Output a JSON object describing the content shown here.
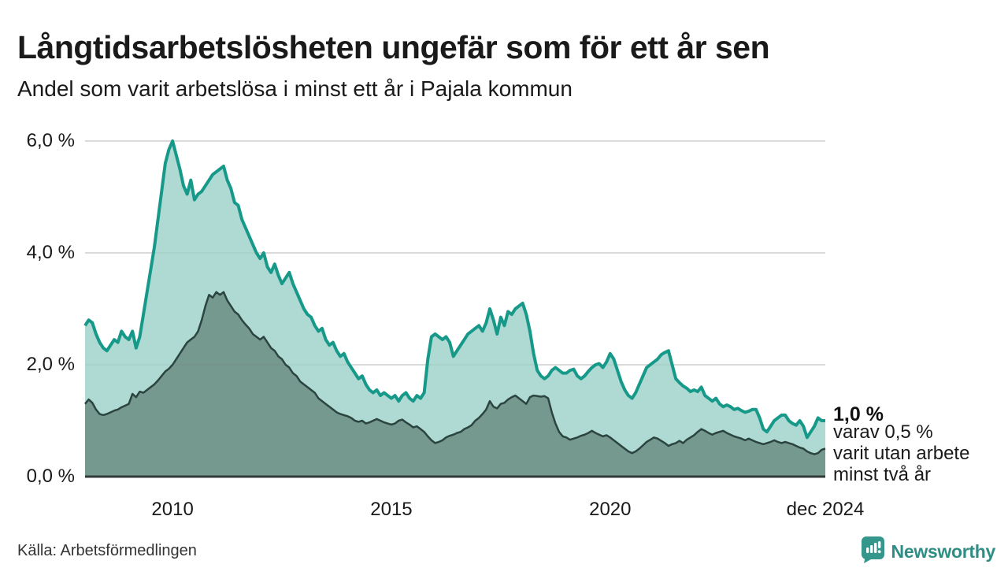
{
  "header": {
    "title": "Långtidsarbetslösheten ungefär som för ett år sen",
    "subtitle": "Andel som varit arbetslösa i minst ett år i Pajala kommun"
  },
  "footer": {
    "source": "Källa: Arbetsförmedlingen",
    "brand": "Newsworthy"
  },
  "colors": {
    "series1_line": "#17998a",
    "series1_fill": "#aedad3",
    "series2_line": "#2b443f",
    "series2_fill": "#75988f",
    "gridline": "#d9d9d9",
    "baseline": "#333b38",
    "brand_teal": "#35968b"
  },
  "chart_data": {
    "type": "area",
    "title": "Långtidsarbetslösheten ungefär som för ett år sen",
    "subtitle": "Andel som varit arbetslösa i minst ett år i Pajala kommun",
    "unit": "%",
    "frequency": "monthly",
    "x_start": "2008-01",
    "x_end": "2024-12",
    "ylim": [
      0,
      6
    ],
    "grid": "horizontal",
    "yticks": [
      {
        "value": 6,
        "label": "6,0 %"
      },
      {
        "value": 4,
        "label": "4,0 %"
      },
      {
        "value": 2,
        "label": "2,0 %"
      },
      {
        "value": 0,
        "label": "0,0 %"
      }
    ],
    "xticks": [
      {
        "label": "2010",
        "month_index": 24
      },
      {
        "label": "2015",
        "month_index": 84
      },
      {
        "label": "2020",
        "month_index": 144
      },
      {
        "label": "dec 2024",
        "month_index": 203
      }
    ],
    "series": [
      {
        "name": "Andel som varit arbetslösa i minst ett år",
        "line_color": "#17998a",
        "fill_color": "#aedad3",
        "line_width": 4,
        "end_value": "1,0 %",
        "values": [
          2.7,
          2.8,
          2.75,
          2.55,
          2.4,
          2.3,
          2.25,
          2.35,
          2.45,
          2.4,
          2.6,
          2.5,
          2.45,
          2.6,
          2.3,
          2.5,
          2.9,
          3.3,
          3.7,
          4.1,
          4.6,
          5.1,
          5.6,
          5.85,
          6.0,
          5.75,
          5.5,
          5.2,
          5.05,
          5.3,
          4.95,
          5.05,
          5.1,
          5.2,
          5.3,
          5.4,
          5.45,
          5.5,
          5.55,
          5.3,
          5.15,
          4.9,
          4.85,
          4.6,
          4.45,
          4.3,
          4.15,
          4.0,
          3.9,
          4.0,
          3.75,
          3.65,
          3.8,
          3.6,
          3.45,
          3.55,
          3.65,
          3.45,
          3.3,
          3.15,
          3.0,
          2.9,
          2.85,
          2.7,
          2.6,
          2.65,
          2.45,
          2.35,
          2.4,
          2.25,
          2.15,
          2.2,
          2.05,
          1.95,
          1.85,
          1.75,
          1.8,
          1.65,
          1.55,
          1.5,
          1.55,
          1.45,
          1.5,
          1.45,
          1.4,
          1.45,
          1.35,
          1.45,
          1.5,
          1.4,
          1.35,
          1.45,
          1.4,
          1.5,
          2.1,
          2.5,
          2.55,
          2.5,
          2.45,
          2.5,
          2.4,
          2.15,
          2.25,
          2.35,
          2.45,
          2.55,
          2.6,
          2.65,
          2.7,
          2.6,
          2.75,
          3.0,
          2.8,
          2.55,
          2.85,
          2.7,
          2.95,
          2.9,
          3.0,
          3.05,
          3.1,
          2.9,
          2.6,
          2.2,
          1.9,
          1.8,
          1.75,
          1.8,
          1.9,
          1.95,
          1.9,
          1.85,
          1.85,
          1.9,
          1.92,
          1.8,
          1.75,
          1.8,
          1.88,
          1.95,
          2.0,
          2.02,
          1.95,
          2.05,
          2.2,
          2.1,
          1.9,
          1.7,
          1.55,
          1.45,
          1.4,
          1.5,
          1.65,
          1.8,
          1.95,
          2.0,
          2.05,
          2.1,
          2.18,
          2.22,
          2.25,
          2.0,
          1.75,
          1.68,
          1.62,
          1.58,
          1.52,
          1.55,
          1.52,
          1.6,
          1.45,
          1.4,
          1.35,
          1.4,
          1.3,
          1.25,
          1.28,
          1.25,
          1.2,
          1.22,
          1.18,
          1.15,
          1.17,
          1.2,
          1.2,
          1.05,
          0.85,
          0.8,
          0.9,
          1.0,
          1.05,
          1.1,
          1.1,
          1.0,
          0.95,
          0.92,
          1.0,
          0.9,
          0.7,
          0.8,
          0.9,
          1.05,
          1.0,
          1.0
        ]
      },
      {
        "name": "varav utan arbete minst två år",
        "line_color": "#2b443f",
        "fill_color": "#75988f",
        "line_width": 2.5,
        "end_value": "0,5 %",
        "values": [
          1.3,
          1.38,
          1.32,
          1.2,
          1.12,
          1.1,
          1.12,
          1.15,
          1.18,
          1.2,
          1.24,
          1.27,
          1.3,
          1.48,
          1.42,
          1.52,
          1.5,
          1.55,
          1.6,
          1.65,
          1.72,
          1.8,
          1.88,
          1.93,
          2.0,
          2.1,
          2.2,
          2.3,
          2.4,
          2.45,
          2.5,
          2.6,
          2.8,
          3.05,
          3.25,
          3.2,
          3.3,
          3.25,
          3.3,
          3.15,
          3.05,
          2.95,
          2.9,
          2.8,
          2.72,
          2.65,
          2.55,
          2.5,
          2.45,
          2.5,
          2.4,
          2.3,
          2.25,
          2.15,
          2.1,
          2.0,
          1.95,
          1.85,
          1.8,
          1.7,
          1.65,
          1.6,
          1.55,
          1.5,
          1.4,
          1.35,
          1.3,
          1.25,
          1.2,
          1.15,
          1.12,
          1.1,
          1.08,
          1.05,
          1.0,
          0.98,
          1.0,
          0.95,
          0.97,
          1.0,
          1.03,
          1.0,
          0.97,
          0.95,
          0.93,
          0.95,
          1.0,
          1.02,
          0.97,
          0.93,
          0.88,
          0.9,
          0.85,
          0.8,
          0.72,
          0.65,
          0.6,
          0.62,
          0.65,
          0.7,
          0.73,
          0.75,
          0.78,
          0.8,
          0.85,
          0.88,
          0.92,
          1.0,
          1.05,
          1.12,
          1.2,
          1.35,
          1.25,
          1.22,
          1.3,
          1.32,
          1.38,
          1.42,
          1.45,
          1.4,
          1.35,
          1.3,
          1.42,
          1.45,
          1.44,
          1.43,
          1.44,
          1.4,
          1.15,
          0.95,
          0.8,
          0.72,
          0.7,
          0.66,
          0.68,
          0.7,
          0.73,
          0.75,
          0.78,
          0.82,
          0.78,
          0.75,
          0.72,
          0.74,
          0.7,
          0.65,
          0.6,
          0.55,
          0.5,
          0.45,
          0.42,
          0.45,
          0.5,
          0.56,
          0.62,
          0.66,
          0.7,
          0.68,
          0.64,
          0.6,
          0.55,
          0.58,
          0.6,
          0.64,
          0.6,
          0.66,
          0.7,
          0.74,
          0.8,
          0.85,
          0.82,
          0.78,
          0.75,
          0.78,
          0.8,
          0.82,
          0.78,
          0.75,
          0.72,
          0.7,
          0.68,
          0.65,
          0.68,
          0.65,
          0.62,
          0.6,
          0.58,
          0.6,
          0.62,
          0.65,
          0.62,
          0.6,
          0.62,
          0.6,
          0.58,
          0.55,
          0.52,
          0.5,
          0.45,
          0.42,
          0.4,
          0.42,
          0.48,
          0.5
        ]
      }
    ],
    "annotations": {
      "end_value_label": "1,0 %",
      "note_line1": "varav 0,5 %",
      "note_line2": "varit utan arbete",
      "note_line3": "minst två år"
    }
  }
}
